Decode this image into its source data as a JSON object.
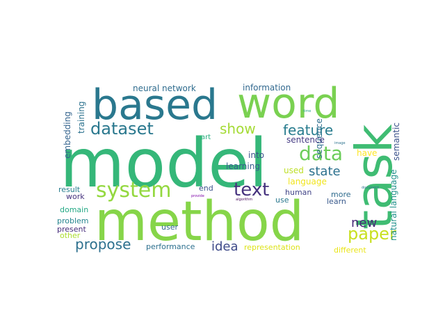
{
  "word_cloud": {
    "words": [
      {
        "text": "model",
        "color": "#35b779"
      },
      {
        "text": "method",
        "color": "#86d549"
      },
      {
        "text": "based",
        "color": "#2a788e"
      },
      {
        "text": "word",
        "color": "#7ad151"
      },
      {
        "text": "task",
        "color": "#3fbc73"
      },
      {
        "text": "system",
        "color": "#94d840"
      },
      {
        "text": "dataset",
        "color": "#2a788e"
      },
      {
        "text": "show",
        "color": "#a5db36"
      },
      {
        "text": "feature",
        "color": "#287c8e"
      },
      {
        "text": "data",
        "color": "#6ccd5a"
      },
      {
        "text": "state",
        "color": "#2c718e"
      },
      {
        "text": "text",
        "color": "#46327e"
      },
      {
        "text": "paper",
        "color": "#c8e020"
      },
      {
        "text": "propose",
        "color": "#2d708e"
      },
      {
        "text": "new",
        "color": "#482878"
      },
      {
        "text": "idea",
        "color": "#3e4a89"
      },
      {
        "text": "neural network",
        "color": "#2f6c8e"
      },
      {
        "text": "information",
        "color": "#31688e"
      },
      {
        "text": "embedding",
        "color": "#33638d"
      },
      {
        "text": "training",
        "color": "#2c728e"
      },
      {
        "text": "semantic",
        "color": "#3b528b"
      },
      {
        "text": "sequence",
        "color": "#2e6e8e"
      },
      {
        "text": "sentence",
        "color": "#443a83"
      },
      {
        "text": "natural language",
        "color": "#21918c"
      },
      {
        "text": "art",
        "color": "#29af7f"
      },
      {
        "text": "into",
        "color": "#3b528b"
      },
      {
        "text": "learning",
        "color": "#365d8d"
      },
      {
        "text": "have",
        "color": "#fde725"
      },
      {
        "text": "used",
        "color": "#bddf26"
      },
      {
        "text": "language",
        "color": "#f1e51d"
      },
      {
        "text": "result",
        "color": "#287d8e"
      },
      {
        "text": "end",
        "color": "#3b528b"
      },
      {
        "text": "human",
        "color": "#414487"
      },
      {
        "text": "more",
        "color": "#2f6c8e"
      },
      {
        "text": "learn",
        "color": "#38598c"
      },
      {
        "text": "use",
        "color": "#2a788e"
      },
      {
        "text": "work",
        "color": "#46337e"
      },
      {
        "text": "domain",
        "color": "#22a884"
      },
      {
        "text": "problem",
        "color": "#25848e"
      },
      {
        "text": "present",
        "color": "#472d7b"
      },
      {
        "text": "other",
        "color": "#addc30"
      },
      {
        "text": "user",
        "color": "#31688e"
      },
      {
        "text": "performance",
        "color": "#2d708e"
      },
      {
        "text": "representation",
        "color": "#dde318"
      },
      {
        "text": "different",
        "color": "#eae51a"
      },
      {
        "text": "time",
        "color": "#20a386"
      },
      {
        "text": "image",
        "color": "#2c728e"
      },
      {
        "text": "provide",
        "color": "#7e03a8"
      },
      {
        "text": "algorithm",
        "color": "#46085c"
      },
      {
        "text": "document",
        "color": "#2c728e"
      }
    ]
  }
}
